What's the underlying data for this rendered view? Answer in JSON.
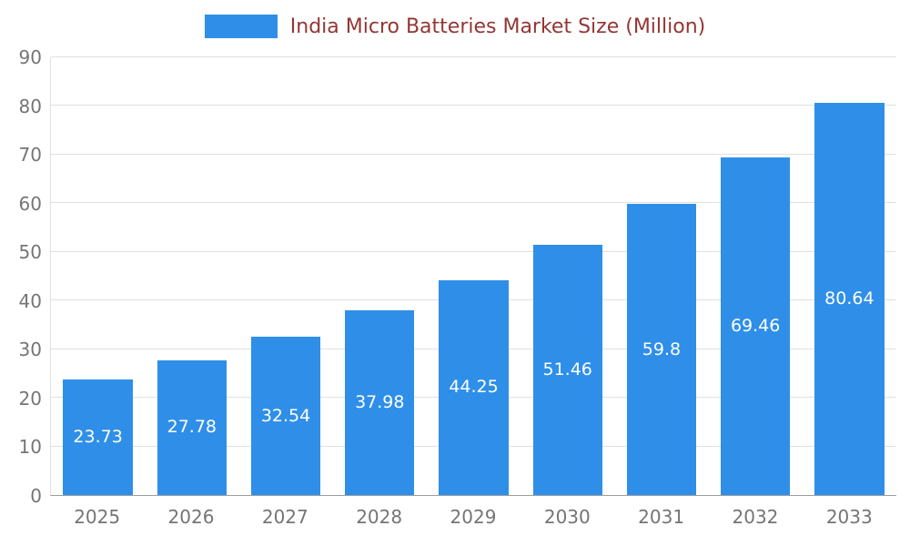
{
  "chart_data": {
    "type": "bar",
    "title": "India Micro Batteries Market Size (Million)",
    "categories": [
      "2025",
      "2026",
      "2027",
      "2028",
      "2029",
      "2030",
      "2031",
      "2032",
      "2033"
    ],
    "values": [
      23.73,
      27.78,
      32.54,
      37.98,
      44.25,
      51.46,
      59.8,
      69.46,
      80.64
    ],
    "value_labels": [
      "23.73",
      "27.78",
      "32.54",
      "37.98",
      "44.25",
      "51.46",
      "59.8",
      "69.46",
      "80.64"
    ],
    "xlabel": "",
    "ylabel": "",
    "ylim": [
      0,
      90
    ],
    "y_ticks": [
      0,
      10,
      20,
      30,
      40,
      50,
      60,
      70,
      80,
      90
    ],
    "grid": true,
    "legend_position": "top",
    "colors": {
      "bar": "#2f8fe8",
      "bar_label": "#ffffff",
      "title_text": "#943634",
      "axis_text": "#757575",
      "gridline": "#e0e0e0"
    }
  }
}
